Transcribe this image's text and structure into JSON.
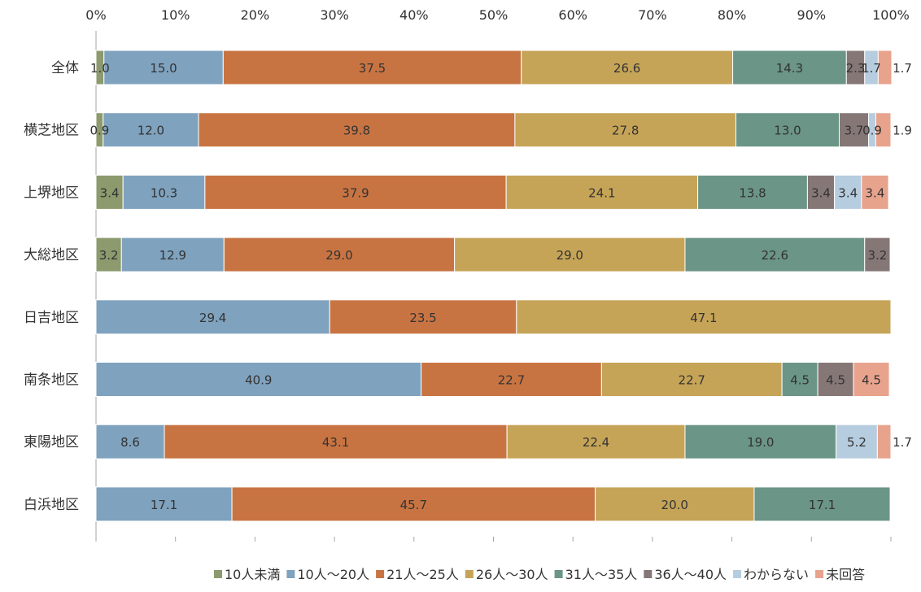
{
  "chart_data": {
    "type": "bar",
    "orientation": "horizontal",
    "stacked": true,
    "percent_stacked": true,
    "title": "",
    "xlabel": "",
    "ylabel": "",
    "xlim": [
      0,
      100
    ],
    "x_ticks": [
      0,
      10,
      20,
      30,
      40,
      50,
      60,
      70,
      80,
      90,
      100
    ],
    "x_tick_labels": [
      "0%",
      "10%",
      "20%",
      "30%",
      "40%",
      "50%",
      "60%",
      "70%",
      "80%",
      "90%",
      "100%"
    ],
    "x_axis_position": "top",
    "grid": false,
    "legend_position": "bottom",
    "categories": [
      "全体",
      "横芝地区",
      "上堺地区",
      "大総地区",
      "日吉地区",
      "南条地区",
      "東陽地区",
      "白浜地区"
    ],
    "series": [
      {
        "name": "10人未満",
        "color": "#8C9A6E",
        "values": [
          1.0,
          0.9,
          3.4,
          3.2,
          0,
          0,
          0,
          0
        ],
        "labels": [
          "1.0",
          "0.9",
          "3.4",
          "3.2",
          "",
          "",
          "",
          ""
        ]
      },
      {
        "name": "10人～20人",
        "color": "#7FA2BE",
        "values": [
          15.0,
          12.0,
          10.3,
          12.9,
          29.4,
          40.9,
          8.6,
          17.1
        ],
        "labels": [
          "15.0",
          "12.0",
          "10.3",
          "12.9",
          "29.4",
          "40.9",
          "8.6",
          "17.1"
        ]
      },
      {
        "name": "21人～25人",
        "color": "#C87442",
        "values": [
          37.5,
          39.8,
          37.9,
          29.0,
          23.5,
          22.7,
          43.1,
          45.7
        ],
        "labels": [
          "37.5",
          "39.8",
          "37.9",
          "29.0",
          "23.5",
          "22.7",
          "43.1",
          "45.7"
        ]
      },
      {
        "name": "26人～30人",
        "color": "#C6A457",
        "values": [
          26.6,
          27.8,
          24.1,
          29.0,
          47.1,
          22.7,
          22.4,
          20.0
        ],
        "labels": [
          "26.6",
          "27.8",
          "24.1",
          "29.0",
          "47.1",
          "22.7",
          "22.4",
          "20.0"
        ]
      },
      {
        "name": "31人～35人",
        "color": "#6B9586",
        "values": [
          14.3,
          13.0,
          13.8,
          22.6,
          0,
          4.5,
          19.0,
          17.1
        ],
        "labels": [
          "14.3",
          "13.0",
          "13.8",
          "22.6",
          "",
          "4.5",
          "19.0",
          "17.1"
        ]
      },
      {
        "name": "36人～40人",
        "color": "#867777",
        "values": [
          2.3,
          3.7,
          3.4,
          3.2,
          0,
          4.5,
          0,
          0
        ],
        "labels": [
          "2.3",
          "3.7",
          "3.4",
          "3.2",
          "",
          "4.5",
          "",
          ""
        ]
      },
      {
        "name": "わからない",
        "color": "#B6CCDF",
        "values": [
          1.7,
          0.9,
          3.4,
          0,
          0,
          0,
          5.2,
          0
        ],
        "labels": [
          "1.7",
          "0.9",
          "3.4",
          "",
          "",
          "",
          "5.2",
          ""
        ]
      },
      {
        "name": "未回答",
        "color": "#E8A38D",
        "values": [
          1.7,
          1.9,
          3.4,
          0,
          0,
          4.5,
          1.7,
          0
        ],
        "labels": [
          "1.7",
          "1.9",
          "3.4",
          "",
          "",
          "4.5",
          "1.7",
          ""
        ]
      }
    ]
  }
}
